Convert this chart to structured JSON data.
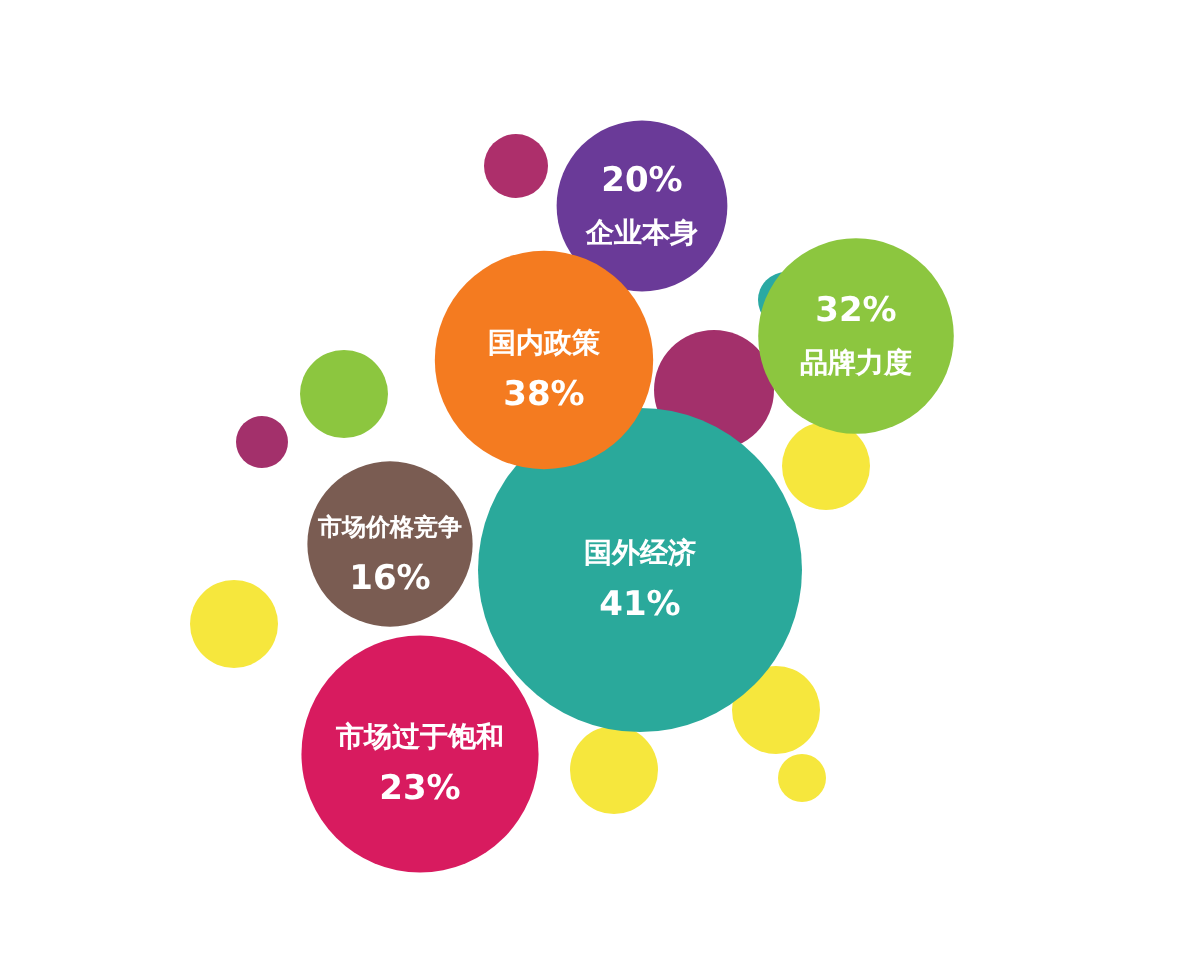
{
  "chart_data": {
    "type": "other",
    "categories": [
      "企业本身",
      "品牌力度",
      "国内政策",
      "国外经济",
      "市场价格竞争",
      "市场过于饱和"
    ],
    "values": [
      20,
      32,
      38,
      41,
      16,
      23
    ],
    "value_labels": [
      "20%",
      "32%",
      "38%",
      "41%",
      "16%",
      "23%"
    ],
    "colors": [
      "#6a3a98",
      "#8cc63f",
      "#f47b20",
      "#2aa99b",
      "#7a5c52",
      "#d81b5f"
    ]
  }
}
